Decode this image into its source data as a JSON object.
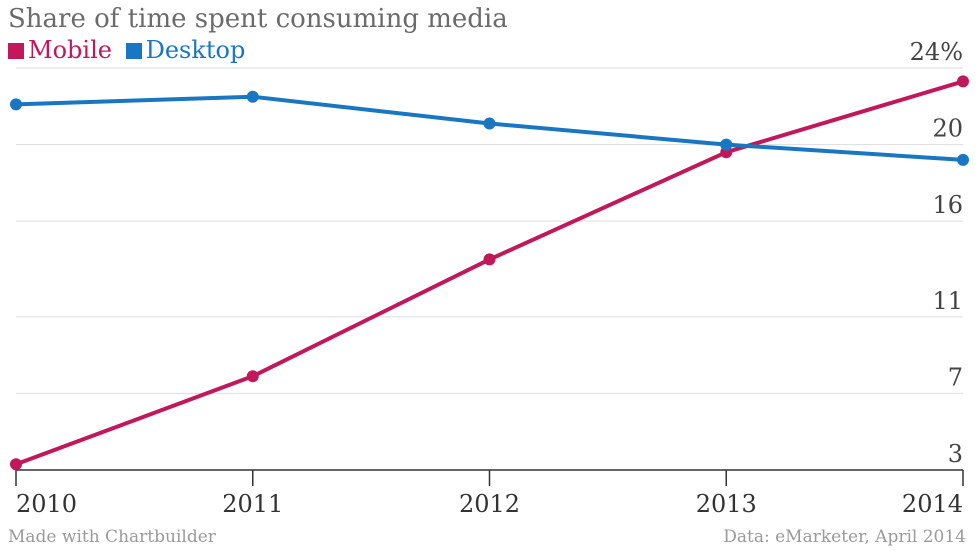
{
  "title": "Share of time spent consuming media",
  "legend": {
    "mobile": {
      "label": "Mobile",
      "color": "#c2185b"
    },
    "desktop": {
      "label": "Desktop",
      "color": "#1976c2"
    }
  },
  "footer": {
    "left": "Made with Chartbuilder",
    "right": "Data: eMarketer, April 2014"
  },
  "chart_data": {
    "type": "line",
    "x": [
      "2010",
      "2011",
      "2012",
      "2013",
      "2014"
    ],
    "series": [
      {
        "name": "Mobile",
        "color": "#c2185b",
        "values": [
          3.3,
          7.9,
          14.0,
          19.6,
          23.3
        ]
      },
      {
        "name": "Desktop",
        "color": "#1976c2",
        "values": [
          22.1,
          22.5,
          21.1,
          20.0,
          19.2
        ]
      }
    ],
    "y_ticks": [
      {
        "value": 3,
        "label": "3"
      },
      {
        "value": 7,
        "label": "7"
      },
      {
        "value": 11,
        "label": "11"
      },
      {
        "value": 16,
        "label": "16"
      },
      {
        "value": 20,
        "label": "20"
      },
      {
        "value": 24,
        "label": "24%"
      }
    ],
    "ylim": [
      3,
      24
    ],
    "grid": true,
    "legend_position": "top-left",
    "axis_color": "#333333",
    "grid_color": "#dddddd",
    "tick_label_color": "#444444"
  }
}
